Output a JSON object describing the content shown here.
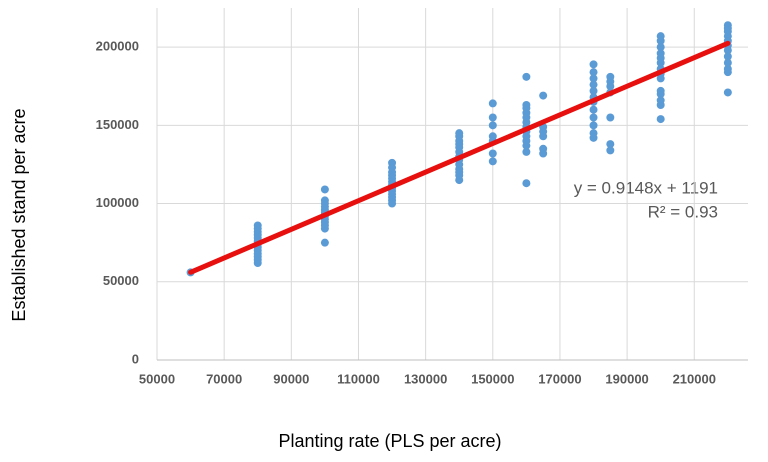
{
  "chart_data": {
    "type": "scatter",
    "x_label": "Planting rate (PLS per acre)",
    "y_label": "Established stand per acre",
    "xlim": [
      50000,
      226000
    ],
    "xticks": [
      50000,
      70000,
      90000,
      110000,
      130000,
      150000,
      170000,
      190000,
      210000
    ],
    "ylim": [
      0,
      225000
    ],
    "yticks": [
      0,
      50000,
      100000,
      150000,
      200000
    ],
    "grid": true,
    "series": [
      {
        "color": "#5b9bd5",
        "x": [
          60000,
          80000,
          80000,
          80000,
          80000,
          80000,
          80000,
          80000,
          80000,
          80000,
          80000,
          80000,
          80000,
          80000,
          100000,
          100000,
          100000,
          100000,
          100000,
          100000,
          100000,
          100000,
          100000,
          100000,
          100000,
          100000,
          120000,
          120000,
          120000,
          120000,
          120000,
          120000,
          120000,
          120000,
          120000,
          120000,
          120000,
          120000,
          120000,
          140000,
          140000,
          140000,
          140000,
          140000,
          140000,
          140000,
          140000,
          140000,
          140000,
          140000,
          140000,
          140000,
          150000,
          150000,
          150000,
          150000,
          150000,
          150000,
          150000,
          160000,
          160000,
          160000,
          160000,
          160000,
          160000,
          160000,
          160000,
          160000,
          160000,
          160000,
          160000,
          160000,
          165000,
          165000,
          165000,
          165000,
          165000,
          165000,
          180000,
          180000,
          180000,
          180000,
          180000,
          180000,
          180000,
          180000,
          180000,
          180000,
          180000,
          180000,
          185000,
          185000,
          185000,
          185000,
          185000,
          185000,
          185000,
          200000,
          200000,
          200000,
          200000,
          200000,
          200000,
          200000,
          200000,
          200000,
          200000,
          200000,
          200000,
          200000,
          200000,
          220000,
          220000,
          220000,
          220000,
          220000,
          220000,
          220000,
          220000,
          220000,
          220000,
          220000,
          220000
        ],
        "values": [
          56000,
          62000,
          64000,
          66000,
          68000,
          70000,
          72000,
          74000,
          76000,
          78000,
          80000,
          82000,
          84000,
          86000,
          75000,
          84000,
          86000,
          88000,
          90000,
          92000,
          94000,
          96000,
          98000,
          100000,
          102000,
          109000,
          100000,
          102000,
          104000,
          106000,
          108000,
          110000,
          112000,
          114000,
          116000,
          118000,
          120000,
          123000,
          126000,
          115000,
          118000,
          120000,
          122000,
          125000,
          128000,
          130000,
          133000,
          136000,
          138000,
          140000,
          143000,
          145000,
          127000,
          132000,
          140000,
          143000,
          150000,
          155000,
          164000,
          113000,
          133000,
          137000,
          140000,
          143000,
          146000,
          149000,
          152000,
          155000,
          158000,
          161000,
          163000,
          181000,
          132000,
          135000,
          143000,
          146000,
          149000,
          169000,
          142000,
          145000,
          150000,
          155000,
          160000,
          165000,
          168000,
          172000,
          176000,
          180000,
          184000,
          189000,
          134000,
          138000,
          155000,
          171000,
          175000,
          178000,
          181000,
          154000,
          163000,
          166000,
          170000,
          172000,
          180000,
          183000,
          186000,
          190000,
          193000,
          196000,
          200000,
          204000,
          207000,
          171000,
          184000,
          186000,
          190000,
          194000,
          198000,
          201000,
          204000,
          207000,
          210000,
          212000,
          214000
        ]
      }
    ],
    "trendline": {
      "color": "#e8100f",
      "x": [
        60000,
        220000
      ],
      "values": [
        56079,
        202447
      ]
    },
    "annotations": [
      "y = 0.9148x + 1191",
      "R² = 0.93"
    ]
  }
}
